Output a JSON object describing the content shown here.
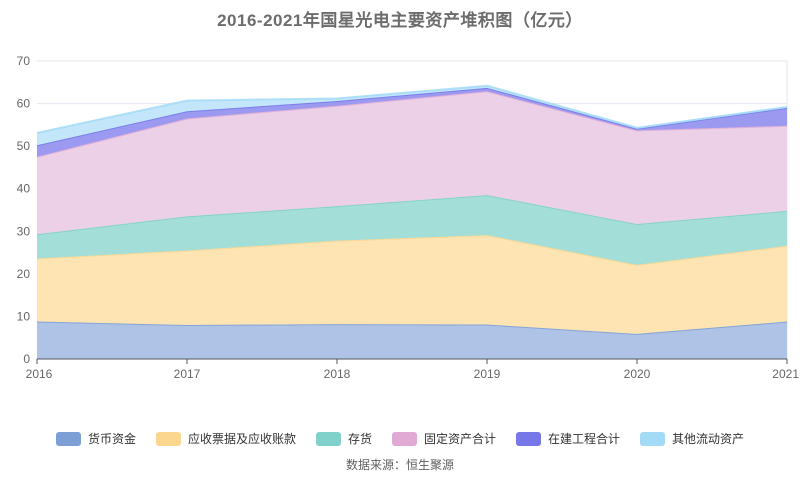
{
  "title": "2016-2021年国星光电主要资产堆积图（亿元）",
  "source": "数据来源：恒生聚源",
  "chart_data": {
    "type": "area",
    "stacked": true,
    "title": "2016-2021年国星光电主要资产堆积图（亿元）",
    "x": [
      2016,
      2017,
      2018,
      2019,
      2020,
      2021
    ],
    "x_labels": [
      "2016",
      "2017",
      "2018",
      "2019",
      "2020",
      "2021"
    ],
    "y_ticks": [
      0,
      10,
      20,
      30,
      40,
      50,
      60,
      70
    ],
    "ylim": [
      0,
      70
    ],
    "unit": "亿元",
    "grid": true,
    "legend_position": "bottom",
    "series": [
      {
        "name": "货币资金",
        "color": "#7C9FD6",
        "area_color": "#AEC3E5",
        "values": [
          8.8,
          8.0,
          8.2,
          8.1,
          5.9,
          8.8
        ]
      },
      {
        "name": "应收票据及应收账款",
        "color": "#FBD68E",
        "area_color": "#FDE4B2",
        "values": [
          14.8,
          17.5,
          19.6,
          21.0,
          16.2,
          17.8
        ]
      },
      {
        "name": "存货",
        "color": "#7FD1C9",
        "area_color": "#A4DED8",
        "values": [
          5.7,
          8.0,
          8.1,
          9.4,
          9.6,
          8.2
        ]
      },
      {
        "name": "固定资产合计",
        "color": "#E0AAD5",
        "area_color": "#ECD0E7",
        "values": [
          18.2,
          23.0,
          23.6,
          24.4,
          22.0,
          20.0
        ]
      },
      {
        "name": "在建工程合计",
        "color": "#7678EA",
        "area_color": "#9B99F0",
        "values": [
          2.7,
          1.7,
          1.1,
          0.8,
          0.4,
          4.2
        ]
      },
      {
        "name": "其他流动资产",
        "color": "#A3DBF7",
        "area_color": "#C3E6FA",
        "values": [
          2.9,
          2.5,
          0.6,
          0.5,
          0.2,
          0.2
        ]
      }
    ]
  }
}
